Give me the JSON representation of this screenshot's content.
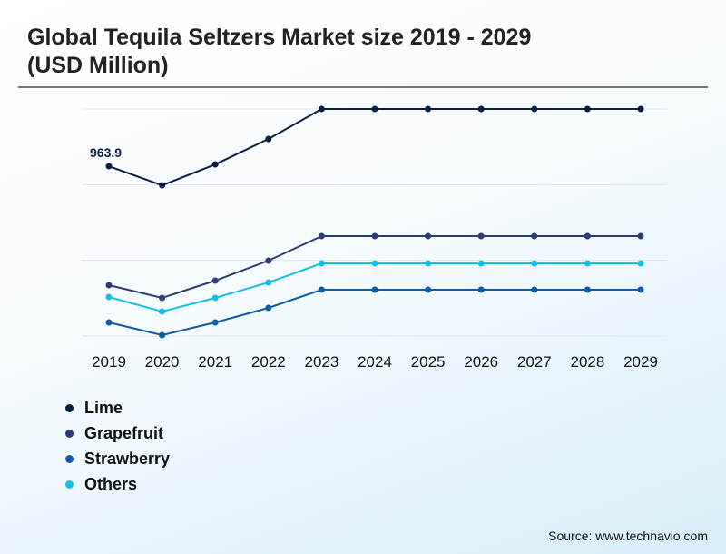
{
  "title": "Global Tequila Seltzers Market size 2019 - 2029 (USD Million)",
  "source": "Source: www.technavio.com",
  "chart_data": {
    "type": "line",
    "title": "Global Tequila Seltzers Market size 2019 - 2029 (USD Million)",
    "xlabel": "",
    "ylabel": "",
    "x": [
      "2019",
      "2020",
      "2021",
      "2022",
      "2023",
      "2024",
      "2025",
      "2026",
      "2027",
      "2028",
      "2029"
    ],
    "ylim": [
      0,
      1289
    ],
    "grid": true,
    "legend_position": "bottom-left",
    "annotations": [
      {
        "series": "Lime",
        "x": "2019",
        "label": "963.9"
      }
    ],
    "series": [
      {
        "name": "Lime",
        "color": "#0b1d45",
        "values": [
          963.9,
          855.7,
          974.3,
          1118.6,
          1288.8,
          1288.8,
          1288.8,
          1288.8,
          1288.8,
          1288.8,
          1288.8
        ]
      },
      {
        "name": "Grapefruit",
        "color": "#2d3d72",
        "values": [
          288.7,
          216.5,
          314.5,
          427.9,
          567.1,
          567.1,
          567.1,
          567.1,
          567.1,
          567.1,
          567.1
        ]
      },
      {
        "name": "Strawberry",
        "color": "#0f5aa8",
        "values": [
          77.3,
          5.2,
          77.3,
          159.8,
          262.9,
          262.9,
          262.9,
          262.9,
          262.9,
          262.9,
          262.9
        ]
      },
      {
        "name": "Others",
        "color": "#17c0e3",
        "values": [
          221.7,
          139.2,
          216.5,
          304.1,
          412.4,
          412.4,
          412.4,
          412.4,
          412.4,
          412.4,
          412.4
        ]
      }
    ]
  }
}
